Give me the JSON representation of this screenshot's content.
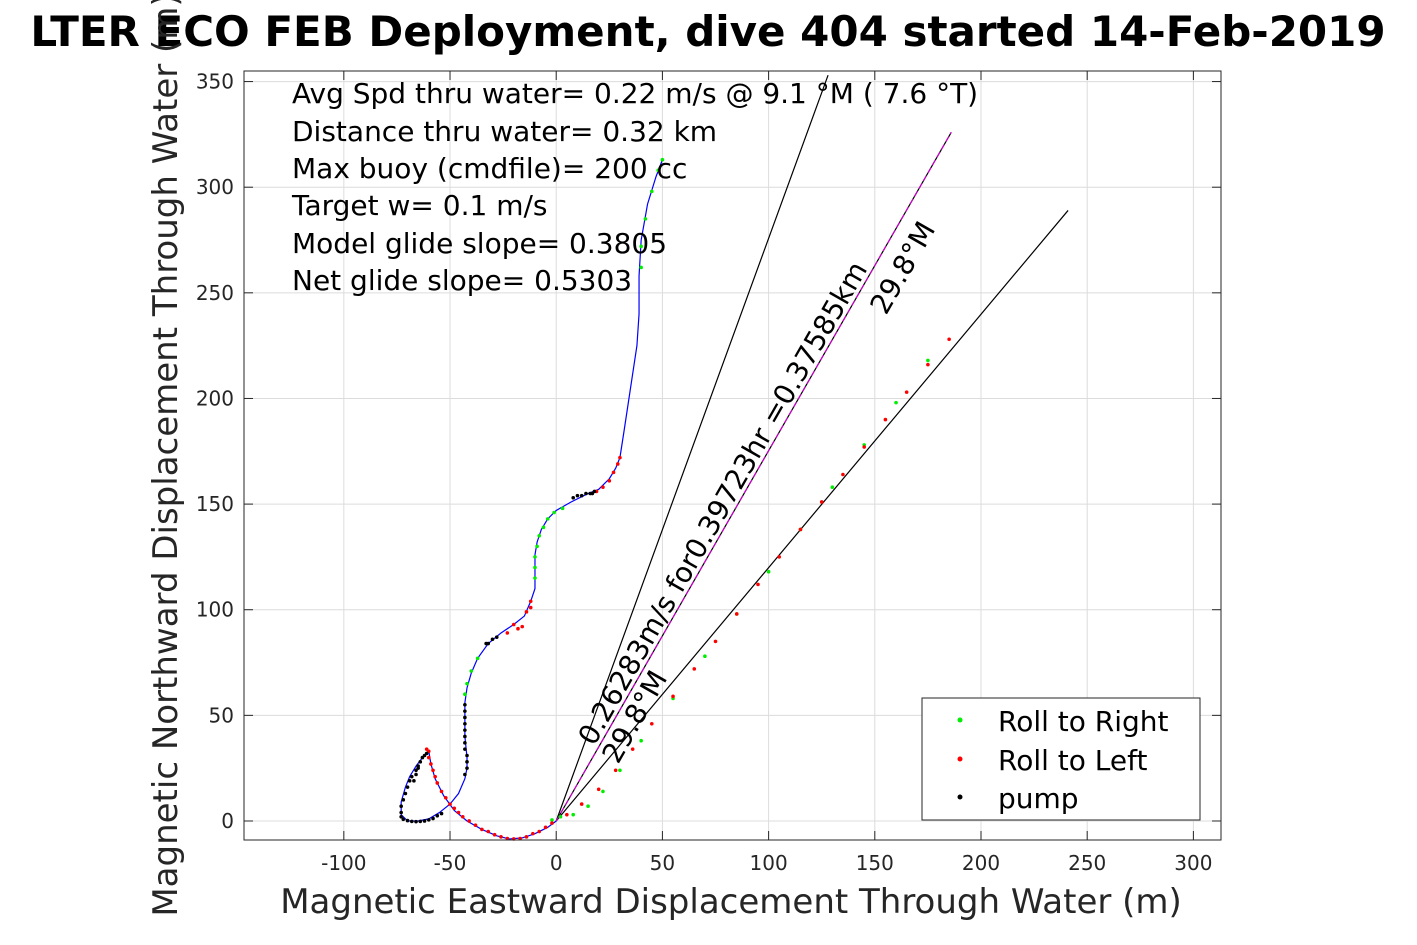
{
  "chart_data": {
    "type": "scatter",
    "title": "LTER ECO FEB Deployment, dive 404 started 14-Feb-2019",
    "xlabel": "Magnetic Eastward Displacement Through Water (m)",
    "ylabel": "Magnetic Northward Displacement Through Water (m)",
    "xlim": [
      -147,
      313
    ],
    "ylim": [
      -9,
      355
    ],
    "xticks": [
      -100,
      -50,
      0,
      50,
      100,
      150,
      200,
      250,
      300
    ],
    "yticks": [
      0,
      50,
      100,
      150,
      200,
      250,
      300,
      350
    ],
    "grid": true,
    "legend_position": "bottom-right",
    "annotations": [
      "Avg Spd thru water=  0.22 m/s @   9.1 °M (  7.6 °T)",
      "Distance thru water=  0.32 km",
      "Max buoy (cmdfile)= 200 cc",
      "Target w= 0.1 m/s",
      "Model glide slope= 0.3805",
      "Net glide slope= 0.5303"
    ],
    "track_label": "0.26283m/s for0.39723hr =0.37585km",
    "heading_label_1": "29.8°M",
    "heading_label_2": "29.8°M",
    "track": [
      [
        0,
        0
      ],
      [
        -4,
        -3
      ],
      [
        -10,
        -6
      ],
      [
        -16,
        -8
      ],
      [
        -22,
        -8.5
      ],
      [
        -28,
        -7
      ],
      [
        -35,
        -4
      ],
      [
        -42,
        0
      ],
      [
        -48,
        5
      ],
      [
        -53,
        12
      ],
      [
        -57,
        20
      ],
      [
        -59,
        27
      ],
      [
        -60,
        33
      ],
      [
        -61,
        32
      ],
      [
        -63,
        30
      ],
      [
        -66,
        26
      ],
      [
        -69,
        21
      ],
      [
        -71,
        16
      ],
      [
        -73,
        9
      ],
      [
        -73,
        3
      ],
      [
        -70,
        0
      ],
      [
        -65,
        0
      ],
      [
        -60,
        1
      ],
      [
        -55,
        4
      ],
      [
        -50,
        8
      ],
      [
        -46,
        13
      ],
      [
        -43,
        20
      ],
      [
        -42,
        25
      ],
      [
        -42,
        30
      ],
      [
        -43,
        40
      ],
      [
        -43,
        48
      ],
      [
        -43,
        56
      ],
      [
        -42,
        63
      ],
      [
        -40,
        70
      ],
      [
        -37,
        77
      ],
      [
        -32,
        84
      ],
      [
        -26,
        89
      ],
      [
        -20,
        93
      ],
      [
        -15,
        97
      ],
      [
        -12,
        104
      ],
      [
        -10,
        110
      ],
      [
        -10,
        118
      ],
      [
        -10,
        126
      ],
      [
        -9,
        132
      ],
      [
        -7,
        138
      ],
      [
        -4,
        143
      ],
      [
        0,
        147
      ],
      [
        7,
        151
      ],
      [
        15,
        155
      ],
      [
        20,
        157
      ],
      [
        25,
        162
      ],
      [
        28,
        167
      ],
      [
        30,
        172
      ],
      [
        32,
        185
      ],
      [
        35,
        205
      ],
      [
        38,
        225
      ],
      [
        39,
        240
      ],
      [
        39,
        258
      ],
      [
        40,
        275
      ],
      [
        43,
        292
      ],
      [
        47,
        305
      ],
      [
        50,
        313
      ]
    ],
    "series": [
      {
        "name": "Roll to Right",
        "color": "#00ee00",
        "points": [
          [
            40,
            262
          ],
          [
            40,
            272
          ],
          [
            42,
            285
          ],
          [
            45,
            298
          ],
          [
            48,
            308
          ],
          [
            50,
            313
          ],
          [
            -43,
            60
          ],
          [
            -42,
            65
          ],
          [
            -40,
            71
          ],
          [
            -37,
            77
          ],
          [
            -10,
            115
          ],
          [
            -10,
            120
          ],
          [
            -10,
            125
          ],
          [
            -9,
            130
          ],
          [
            -8,
            135
          ],
          [
            -6,
            139
          ],
          [
            -4,
            143
          ],
          [
            -1,
            146
          ],
          [
            3,
            148
          ],
          [
            -2,
            0.5
          ],
          [
            2,
            2
          ],
          [
            8,
            3
          ],
          [
            15,
            7
          ],
          [
            22,
            14
          ],
          [
            30,
            24
          ],
          [
            40,
            38
          ],
          [
            55,
            58
          ],
          [
            70,
            78
          ],
          [
            85,
            98
          ],
          [
            100,
            118
          ],
          [
            115,
            138
          ],
          [
            130,
            158
          ],
          [
            145,
            178
          ],
          [
            160,
            198
          ],
          [
            175,
            218
          ]
        ]
      },
      {
        "name": "Roll to Left",
        "color": "#ff0000",
        "points": [
          [
            -2,
            -1
          ],
          [
            -5,
            -3
          ],
          [
            -8,
            -5
          ],
          [
            -11,
            -6
          ],
          [
            -14,
            -7.5
          ],
          [
            -17,
            -8.3
          ],
          [
            -20,
            -8.5
          ],
          [
            -23,
            -8.3
          ],
          [
            -26,
            -7.5
          ],
          [
            -29,
            -6.5
          ],
          [
            -32,
            -5
          ],
          [
            -35,
            -4
          ],
          [
            -38,
            -2
          ],
          [
            -41,
            0
          ],
          [
            -44,
            2
          ],
          [
            -46,
            4
          ],
          [
            -48,
            6
          ],
          [
            -50,
            8
          ],
          [
            -52,
            11
          ],
          [
            -54,
            14
          ],
          [
            -56,
            18
          ],
          [
            -57,
            21
          ],
          [
            -58,
            24
          ],
          [
            -59,
            27
          ],
          [
            -60,
            30
          ],
          [
            -60,
            33
          ],
          [
            -61,
            34
          ],
          [
            -16,
            92
          ],
          [
            -18,
            91
          ],
          [
            -20,
            93
          ],
          [
            -14,
            99
          ],
          [
            -12,
            104
          ],
          [
            -12,
            101
          ],
          [
            -23,
            89
          ],
          [
            19,
            156
          ],
          [
            22,
            158
          ],
          [
            25,
            161
          ],
          [
            27,
            165
          ],
          [
            29,
            169
          ],
          [
            30,
            172
          ],
          [
            5,
            3
          ],
          [
            12,
            8
          ],
          [
            20,
            15
          ],
          [
            28,
            24
          ],
          [
            36,
            34
          ],
          [
            45,
            46
          ],
          [
            55,
            59
          ],
          [
            65,
            72
          ],
          [
            75,
            85
          ],
          [
            85,
            98
          ],
          [
            95,
            112
          ],
          [
            105,
            125
          ],
          [
            115,
            138
          ],
          [
            125,
            151
          ],
          [
            135,
            164
          ],
          [
            145,
            177
          ],
          [
            155,
            190
          ],
          [
            165,
            203
          ],
          [
            175,
            216
          ],
          [
            185,
            228
          ]
        ]
      },
      {
        "name": "pump",
        "color": "#000000",
        "points": [
          [
            -73,
            4
          ],
          [
            -73,
            7
          ],
          [
            -72,
            10
          ],
          [
            -71,
            13
          ],
          [
            -70,
            16
          ],
          [
            -69,
            19
          ],
          [
            -68,
            21
          ],
          [
            -66,
            24
          ],
          [
            -65,
            26
          ],
          [
            -64,
            28
          ],
          [
            -63,
            30
          ],
          [
            -62,
            31
          ],
          [
            -61,
            32
          ],
          [
            -73,
            2
          ],
          [
            -72,
            0.8
          ],
          [
            -70,
            0.2
          ],
          [
            -68,
            -0.2
          ],
          [
            -66,
            -0.3
          ],
          [
            -64,
            -0.2
          ],
          [
            -62,
            0
          ],
          [
            -60,
            0.5
          ],
          [
            -58,
            1.2
          ],
          [
            -56,
            2.5
          ],
          [
            -54,
            3.5
          ],
          [
            -43,
            22
          ],
          [
            -42,
            25
          ],
          [
            -42,
            28
          ],
          [
            -42,
            31
          ],
          [
            -43,
            34
          ],
          [
            -43,
            37
          ],
          [
            -43,
            40
          ],
          [
            -43,
            43
          ],
          [
            -43,
            46
          ],
          [
            -43,
            49
          ],
          [
            -43,
            52
          ],
          [
            -43,
            55
          ],
          [
            -33,
            84
          ],
          [
            -32,
            84
          ],
          [
            -30,
            86
          ],
          [
            -28,
            87
          ],
          [
            8,
            153
          ],
          [
            10,
            154
          ],
          [
            12,
            154
          ],
          [
            14,
            155
          ],
          [
            16,
            155
          ],
          [
            17,
            155
          ],
          [
            18,
            156
          ],
          [
            -65,
            25
          ],
          [
            -66,
            22
          ],
          [
            -67,
            19
          ]
        ]
      }
    ],
    "reference_lines": [
      [
        [
          0,
          0
        ],
        [
          128,
          353
        ]
      ],
      [
        [
          0,
          0
        ],
        [
          186,
          326
        ]
      ],
      [
        [
          0,
          0
        ],
        [
          241,
          289
        ]
      ]
    ]
  }
}
